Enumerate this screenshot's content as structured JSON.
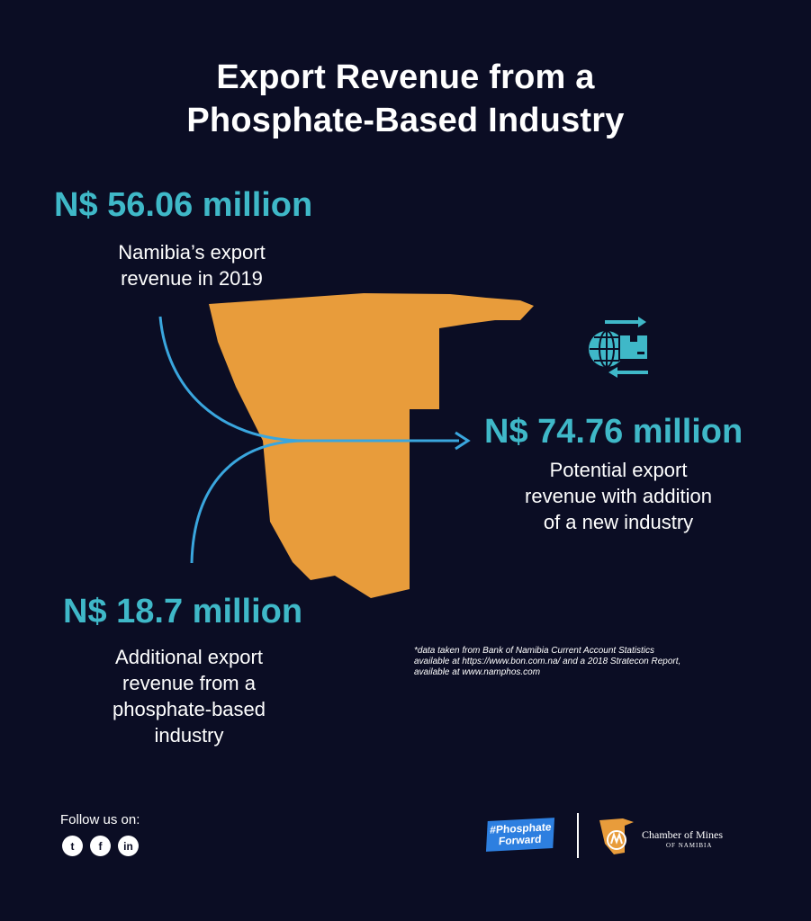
{
  "title": {
    "line1": "Export Revenue from a",
    "line2": "Phosphate-Based Industry"
  },
  "stat_2019": {
    "value": "N$ 56.06 million",
    "caption_line1": "Namibia’s export",
    "caption_line2": "revenue in 2019"
  },
  "stat_potential": {
    "value": "N$ 74.76 million",
    "caption_line1": "Potential export",
    "caption_line2": "revenue with addition",
    "caption_line3": "of a new industry"
  },
  "stat_phosphate": {
    "value": "N$ 18.7 million",
    "caption_line1": "Additional export",
    "caption_line2": "revenue from a",
    "caption_line3": "phosphate-based",
    "caption_line4": "industry"
  },
  "footnote": {
    "line1": "*data taken from Bank of Namibia Current Account Statistics",
    "line2": "available at https://www.bon.com.na/ and a 2018 Stratecon Report,",
    "line3": "available at www.namphos.com"
  },
  "footer": {
    "follow_label": "Follow us on:",
    "social": [
      {
        "icon": "twitter-icon",
        "glyph": "t"
      },
      {
        "icon": "facebook-icon",
        "glyph": "f"
      },
      {
        "icon": "linkedin-icon",
        "glyph": "in"
      }
    ],
    "badge_line1": "#Phosphate",
    "badge_line2": "Forward",
    "chamber_name": "Chamber of Mines",
    "chamber_sub": "OF NAMIBIA"
  },
  "colors": {
    "background": "#0b0d24",
    "accent_teal": "#3fb8c8",
    "arrow_blue": "#3aa6de",
    "map_orange": "#e89c3b"
  },
  "icons": {
    "export": "globe-box-arrows-icon"
  }
}
